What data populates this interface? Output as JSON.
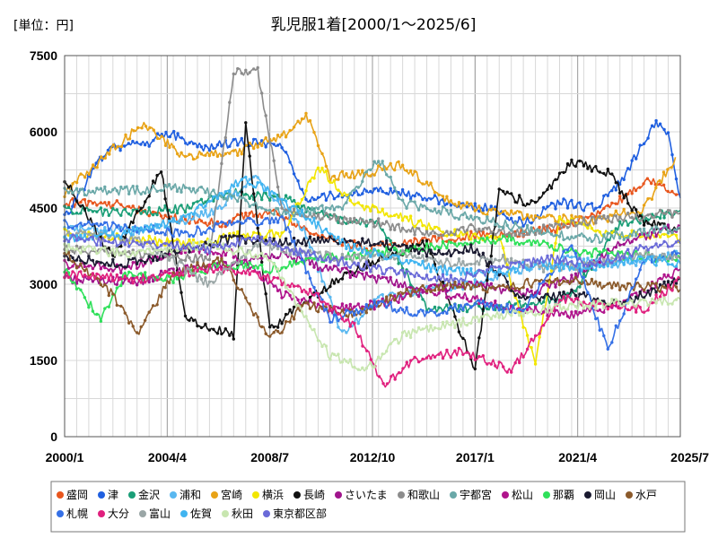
{
  "chart_data": {
    "type": "line",
    "title": "乳児服1着[2000/1～2025/6]",
    "unit_label": "[単位：円]",
    "x_range": [
      "2000/1",
      "2025/7"
    ],
    "y_range": [
      0,
      7500
    ],
    "x_ticks": [
      "2000/1",
      "2004/4",
      "2008/7",
      "2012/10",
      "2017/1",
      "2021/4",
      "2025/7"
    ],
    "y_ticks": [
      0,
      1500,
      3000,
      4500,
      6000,
      7500
    ],
    "grid": true,
    "legend_position": "bottom",
    "series": [
      {
        "name": "盛岡",
        "color": "#e8561e",
        "points": [
          [
            2000.0,
            4600
          ],
          [
            2002.5,
            4550
          ],
          [
            2004.5,
            4300
          ],
          [
            2006.5,
            4200
          ],
          [
            2008.5,
            4450
          ],
          [
            2010.5,
            4000
          ],
          [
            2012.5,
            3700
          ],
          [
            2014.5,
            3850
          ],
          [
            2016.5,
            3950
          ],
          [
            2018.5,
            4000
          ],
          [
            2020.5,
            4100
          ],
          [
            2022.5,
            4500
          ],
          [
            2023.5,
            4800
          ],
          [
            2024.3,
            5050
          ],
          [
            2025.5,
            4750
          ]
        ]
      },
      {
        "name": "津",
        "color": "#1f5fe0",
        "points": [
          [
            2000.0,
            4300
          ],
          [
            2001.8,
            5700
          ],
          [
            2003.5,
            5750
          ],
          [
            2004.2,
            6000
          ],
          [
            2005.5,
            5700
          ],
          [
            2007.5,
            5800
          ],
          [
            2009.0,
            5750
          ],
          [
            2010.0,
            4700
          ],
          [
            2011.5,
            4750
          ],
          [
            2013.0,
            4850
          ],
          [
            2014.5,
            4750
          ],
          [
            2016.0,
            4600
          ],
          [
            2017.5,
            4500
          ],
          [
            2019.0,
            4200
          ],
          [
            2020.5,
            4600
          ],
          [
            2022.0,
            4500
          ],
          [
            2023.0,
            5000
          ],
          [
            2024.5,
            6200
          ],
          [
            2025.0,
            5900
          ],
          [
            2025.5,
            4700
          ]
        ]
      },
      {
        "name": "金沢",
        "color": "#1a9e77",
        "points": [
          [
            2000.0,
            4450
          ],
          [
            2003.0,
            4400
          ],
          [
            2005.0,
            4500
          ],
          [
            2007.0,
            4800
          ],
          [
            2009.0,
            4700
          ],
          [
            2011.0,
            4300
          ],
          [
            2013.0,
            4200
          ],
          [
            2015.0,
            2500
          ],
          [
            2017.0,
            2550
          ],
          [
            2019.0,
            2600
          ],
          [
            2021.0,
            2800
          ],
          [
            2023.0,
            4200
          ],
          [
            2025.5,
            4450
          ]
        ]
      },
      {
        "name": "浦和",
        "color": "#5ab8f0",
        "points": [
          [
            2000.0,
            4100
          ],
          [
            2003.0,
            4050
          ],
          [
            2006.0,
            4400
          ],
          [
            2008.0,
            5100
          ],
          [
            2010.0,
            4000
          ],
          [
            2011.5,
            2000
          ],
          [
            2013.0,
            2700
          ],
          [
            2015.0,
            2900
          ],
          [
            2017.0,
            3000
          ],
          [
            2019.0,
            3300
          ],
          [
            2021.0,
            3500
          ],
          [
            2023.0,
            3400
          ],
          [
            2025.5,
            3600
          ]
        ]
      },
      {
        "name": "宮崎",
        "color": "#e8a317",
        "points": [
          [
            2000.0,
            4800
          ],
          [
            2003.2,
            6150
          ],
          [
            2005.0,
            5500
          ],
          [
            2007.0,
            5600
          ],
          [
            2009.0,
            5900
          ],
          [
            2010.0,
            6350
          ],
          [
            2011.0,
            5100
          ],
          [
            2012.5,
            5200
          ],
          [
            2014.0,
            5350
          ],
          [
            2016.0,
            4600
          ],
          [
            2018.0,
            4400
          ],
          [
            2020.0,
            4300
          ],
          [
            2022.0,
            4250
          ],
          [
            2024.0,
            4500
          ],
          [
            2025.3,
            5500
          ]
        ]
      },
      {
        "name": "横浜",
        "color": "#f2e600",
        "points": [
          [
            2000.0,
            4000
          ],
          [
            2002.5,
            3900
          ],
          [
            2005.0,
            3800
          ],
          [
            2007.0,
            3950
          ],
          [
            2009.0,
            4000
          ],
          [
            2010.5,
            5300
          ],
          [
            2012.0,
            4600
          ],
          [
            2014.0,
            4300
          ],
          [
            2016.0,
            4000
          ],
          [
            2018.0,
            3900
          ],
          [
            2019.5,
            1400
          ],
          [
            2020.5,
            4300
          ],
          [
            2022.5,
            4000
          ],
          [
            2025.5,
            3900
          ]
        ]
      },
      {
        "name": "長崎",
        "color": "#111111",
        "points": [
          [
            2000.0,
            5100
          ],
          [
            2002.0,
            3500
          ],
          [
            2004.0,
            5250
          ],
          [
            2005.0,
            2350
          ],
          [
            2007.0,
            2000
          ],
          [
            2007.5,
            6150
          ],
          [
            2008.5,
            2100
          ],
          [
            2009.5,
            2500
          ],
          [
            2011.0,
            3000
          ],
          [
            2013.0,
            3500
          ],
          [
            2015.0,
            3800
          ],
          [
            2017.0,
            1300
          ],
          [
            2018.0,
            4800
          ],
          [
            2019.5,
            4550
          ],
          [
            2021.0,
            5400
          ],
          [
            2022.5,
            5200
          ],
          [
            2024.0,
            4200
          ],
          [
            2025.5,
            4100
          ]
        ]
      },
      {
        "name": "さいたま",
        "color": "#a0148c",
        "points": [
          [
            2000.0,
            3100
          ],
          [
            2003.0,
            3050
          ],
          [
            2005.0,
            3300
          ],
          [
            2007.0,
            3400
          ],
          [
            2009.0,
            3600
          ],
          [
            2011.0,
            3300
          ],
          [
            2013.0,
            3100
          ],
          [
            2015.0,
            2900
          ],
          [
            2017.0,
            3000
          ],
          [
            2019.0,
            2800
          ],
          [
            2021.0,
            3100
          ],
          [
            2023.0,
            3800
          ],
          [
            2025.5,
            4150
          ]
        ]
      },
      {
        "name": "和歌山",
        "color": "#8c8c8c",
        "points": [
          [
            2000.0,
            3700
          ],
          [
            2003.0,
            3600
          ],
          [
            2006.0,
            3500
          ],
          [
            2007.0,
            7200
          ],
          [
            2008.0,
            7200
          ],
          [
            2009.0,
            4500
          ],
          [
            2011.0,
            4300
          ],
          [
            2013.0,
            4200
          ],
          [
            2015.0,
            4000
          ],
          [
            2017.0,
            4100
          ],
          [
            2019.0,
            4000
          ],
          [
            2021.0,
            4200
          ],
          [
            2023.0,
            4300
          ],
          [
            2025.5,
            4400
          ]
        ]
      },
      {
        "name": "宇都宮",
        "color": "#6aa8a8",
        "points": [
          [
            2000.0,
            4800
          ],
          [
            2002.5,
            4850
          ],
          [
            2005.0,
            4900
          ],
          [
            2007.0,
            4700
          ],
          [
            2009.0,
            4400
          ],
          [
            2011.5,
            4500
          ],
          [
            2013.0,
            5500
          ],
          [
            2014.0,
            4600
          ],
          [
            2016.0,
            4400
          ],
          [
            2018.0,
            4200
          ],
          [
            2020.0,
            4000
          ],
          [
            2022.0,
            3900
          ],
          [
            2025.5,
            4100
          ]
        ]
      },
      {
        "name": "松山",
        "color": "#b0148c",
        "points": [
          [
            2000.0,
            3400
          ],
          [
            2002.5,
            3300
          ],
          [
            2005.0,
            3700
          ],
          [
            2007.0,
            3600
          ],
          [
            2009.0,
            2800
          ],
          [
            2011.0,
            2500
          ],
          [
            2013.0,
            2600
          ],
          [
            2015.0,
            2900
          ],
          [
            2017.0,
            2700
          ],
          [
            2019.0,
            2500
          ],
          [
            2021.0,
            2400
          ],
          [
            2023.0,
            2600
          ],
          [
            2025.5,
            3300
          ]
        ]
      },
      {
        "name": "那覇",
        "color": "#2fe05a",
        "points": [
          [
            2000.0,
            3300
          ],
          [
            2001.5,
            2300
          ],
          [
            2002.5,
            3200
          ],
          [
            2004.5,
            3100
          ],
          [
            2006.5,
            3400
          ],
          [
            2008.5,
            3300
          ],
          [
            2010.5,
            3500
          ],
          [
            2012.5,
            3600
          ],
          [
            2014.5,
            3700
          ],
          [
            2016.5,
            3800
          ],
          [
            2018.5,
            3900
          ],
          [
            2020.5,
            3700
          ],
          [
            2022.5,
            3600
          ],
          [
            2025.5,
            3500
          ]
        ]
      },
      {
        "name": "岡山",
        "color": "#1a1a30",
        "points": [
          [
            2000.0,
            3500
          ],
          [
            2002.5,
            3400
          ],
          [
            2005.0,
            3700
          ],
          [
            2007.0,
            3900
          ],
          [
            2009.0,
            3800
          ],
          [
            2011.0,
            3900
          ],
          [
            2013.0,
            3800
          ],
          [
            2015.0,
            3600
          ],
          [
            2017.0,
            3700
          ],
          [
            2019.0,
            2700
          ],
          [
            2021.0,
            2800
          ],
          [
            2023.0,
            2600
          ],
          [
            2025.5,
            3100
          ]
        ]
      },
      {
        "name": "水戸",
        "color": "#8b5a2b",
        "points": [
          [
            2000.0,
            3600
          ],
          [
            2002.0,
            2800
          ],
          [
            2003.0,
            2000
          ],
          [
            2004.5,
            3200
          ],
          [
            2006.5,
            3500
          ],
          [
            2008.5,
            1900
          ],
          [
            2010.0,
            2600
          ],
          [
            2012.0,
            2400
          ],
          [
            2014.0,
            2800
          ],
          [
            2016.0,
            3000
          ],
          [
            2018.0,
            2900
          ],
          [
            2020.0,
            3100
          ],
          [
            2022.0,
            3000
          ],
          [
            2025.5,
            2900
          ]
        ]
      },
      {
        "name": "札幌",
        "color": "#3570e6",
        "points": [
          [
            2000.0,
            4200
          ],
          [
            2003.0,
            4100
          ],
          [
            2005.0,
            4000
          ],
          [
            2007.0,
            4200
          ],
          [
            2009.0,
            4300
          ],
          [
            2011.0,
            2300
          ],
          [
            2013.0,
            2600
          ],
          [
            2015.0,
            2400
          ],
          [
            2017.0,
            2600
          ],
          [
            2019.0,
            2500
          ],
          [
            2021.0,
            3800
          ],
          [
            2022.5,
            1700
          ],
          [
            2024.0,
            3500
          ],
          [
            2025.5,
            3600
          ]
        ]
      },
      {
        "name": "大分",
        "color": "#e0207e",
        "points": [
          [
            2000.0,
            3200
          ],
          [
            2003.0,
            3100
          ],
          [
            2006.0,
            3300
          ],
          [
            2008.0,
            3200
          ],
          [
            2010.0,
            2900
          ],
          [
            2012.0,
            2200
          ],
          [
            2013.2,
            1000
          ],
          [
            2014.5,
            1500
          ],
          [
            2016.5,
            1700
          ],
          [
            2018.5,
            1300
          ],
          [
            2020.5,
            2700
          ],
          [
            2022.5,
            2600
          ],
          [
            2024.0,
            2500
          ],
          [
            2025.5,
            3100
          ]
        ]
      },
      {
        "name": "富山",
        "color": "#9aa6a6",
        "points": [
          [
            2000.0,
            4000
          ],
          [
            2003.0,
            3900
          ],
          [
            2006.0,
            3000
          ],
          [
            2008.0,
            3800
          ],
          [
            2010.0,
            3600
          ],
          [
            2012.0,
            3500
          ],
          [
            2014.0,
            3600
          ],
          [
            2016.0,
            3400
          ],
          [
            2018.0,
            3500
          ],
          [
            2020.0,
            3300
          ],
          [
            2022.0,
            3400
          ],
          [
            2024.0,
            3600
          ],
          [
            2025.5,
            3500
          ]
        ]
      },
      {
        "name": "佐賀",
        "color": "#40b4f0",
        "points": [
          [
            2000.0,
            3900
          ],
          [
            2002.5,
            4000
          ],
          [
            2005.0,
            4300
          ],
          [
            2007.5,
            5100
          ],
          [
            2009.5,
            4500
          ],
          [
            2011.5,
            3800
          ],
          [
            2013.5,
            3500
          ],
          [
            2015.5,
            3300
          ],
          [
            2017.5,
            3200
          ],
          [
            2019.5,
            3400
          ],
          [
            2021.5,
            3300
          ],
          [
            2023.5,
            3500
          ],
          [
            2025.5,
            3400
          ]
        ]
      },
      {
        "name": "秋田",
        "color": "#c8e6b0",
        "points": [
          [
            2000.0,
            3700
          ],
          [
            2003.0,
            3600
          ],
          [
            2006.0,
            3800
          ],
          [
            2008.5,
            3500
          ],
          [
            2010.0,
            2300
          ],
          [
            2011.0,
            1600
          ],
          [
            2012.5,
            1300
          ],
          [
            2014.0,
            2000
          ],
          [
            2016.0,
            2200
          ],
          [
            2018.0,
            2400
          ],
          [
            2020.0,
            2500
          ],
          [
            2022.0,
            2600
          ],
          [
            2025.5,
            2700
          ]
        ]
      },
      {
        "name": "東京都区部",
        "color": "#6a6ad8",
        "points": [
          [
            2000.0,
            3900
          ],
          [
            2003.0,
            3800
          ],
          [
            2006.0,
            3700
          ],
          [
            2008.0,
            3900
          ],
          [
            2010.0,
            3600
          ],
          [
            2012.0,
            3400
          ],
          [
            2014.0,
            3200
          ],
          [
            2016.0,
            3100
          ],
          [
            2018.0,
            3300
          ],
          [
            2020.0,
            3500
          ],
          [
            2022.0,
            3400
          ],
          [
            2024.0,
            3700
          ],
          [
            2025.5,
            3800
          ]
        ]
      }
    ]
  }
}
